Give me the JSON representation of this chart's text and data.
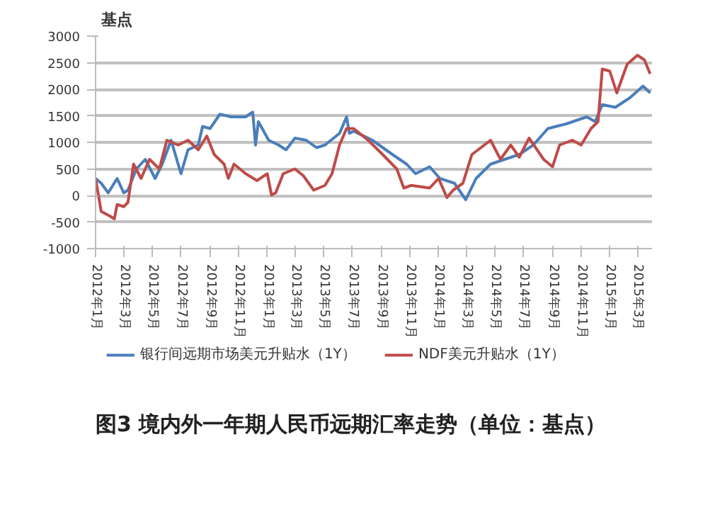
{
  "chart_data": {
    "type": "line",
    "title": "图3 境内外一年期人民币远期汇率走势（单位：基点）",
    "ylabel": "基点",
    "xlim": [
      "2012-01-01",
      "2015-04-01"
    ],
    "ylim": [
      -1000,
      3000
    ],
    "yticks": [
      -1000,
      -500,
      0,
      500,
      1000,
      1500,
      2000,
      2500,
      3000
    ],
    "xticks": [
      {
        "value": "2012-01",
        "label": "2012年1月"
      },
      {
        "value": "2012-03",
        "label": "2012年3月"
      },
      {
        "value": "2012-05",
        "label": "2012年5月"
      },
      {
        "value": "2012-07",
        "label": "2012年7月"
      },
      {
        "value": "2012-09",
        "label": "2012年9月"
      },
      {
        "value": "2012-11",
        "label": "2012年11月"
      },
      {
        "value": "2013-01",
        "label": "2013年1月"
      },
      {
        "value": "2013-03",
        "label": "2013年3月"
      },
      {
        "value": "2013-05",
        "label": "2013年5月"
      },
      {
        "value": "2013-07",
        "label": "2013年7月"
      },
      {
        "value": "2013-09",
        "label": "2013年9月"
      },
      {
        "value": "2013-11",
        "label": "2013年11月"
      },
      {
        "value": "2014-01",
        "label": "2014年1月"
      },
      {
        "value": "2014-03",
        "label": "2014年3月"
      },
      {
        "value": "2014-05",
        "label": "2014年5月"
      },
      {
        "value": "2014-07",
        "label": "2014年7月"
      },
      {
        "value": "2014-09",
        "label": "2014年9月"
      },
      {
        "value": "2014-11",
        "label": "2014年11月"
      },
      {
        "value": "2015-01",
        "label": "2015年1月"
      },
      {
        "value": "2015-03",
        "label": "2015年3月"
      }
    ],
    "grid": "y",
    "legend": "bottom",
    "line_style": "solid",
    "series": [
      {
        "name": "银行间远期市场美元升贴水（1Y）",
        "color": "#4a7ebb",
        "x": [
          "2012-01-01",
          "2012-01-13",
          "2012-01-28",
          "2012-02-16",
          "2012-03-01",
          "2012-03-10",
          "2012-03-28",
          "2012-04-16",
          "2012-05-07",
          "2012-05-22",
          "2012-06-10",
          "2012-07-01",
          "2012-07-16",
          "2012-08-07",
          "2012-08-16",
          "2012-09-01",
          "2012-09-22",
          "2012-10-16",
          "2012-11-16",
          "2012-12-01",
          "2012-12-07",
          "2012-12-13",
          "2013-01-04",
          "2013-01-25",
          "2013-02-10",
          "2013-03-01",
          "2013-03-25",
          "2013-04-16",
          "2013-05-04",
          "2013-06-04",
          "2013-06-19",
          "2013-06-25",
          "2013-07-04",
          "2013-08-13",
          "2013-09-25",
          "2013-10-25",
          "2013-11-13",
          "2013-12-13",
          "2014-01-04",
          "2014-02-04",
          "2014-02-28",
          "2014-03-22",
          "2014-04-22",
          "2014-05-22",
          "2014-06-22",
          "2014-07-22",
          "2014-08-22",
          "2014-10-01",
          "2014-11-13",
          "2014-12-01",
          "2014-12-16",
          "2015-01-13",
          "2015-02-13",
          "2015-03-13",
          "2015-03-28"
        ],
        "values": [
          320,
          230,
          50,
          320,
          50,
          100,
          500,
          680,
          320,
          590,
          1040,
          410,
          860,
          950,
          1300,
          1260,
          1530,
          1480,
          1480,
          1570,
          950,
          1390,
          1040,
          950,
          860,
          1080,
          1040,
          900,
          950,
          1170,
          1480,
          1170,
          1210,
          1040,
          770,
          590,
          410,
          540,
          320,
          230,
          -80,
          320,
          590,
          680,
          770,
          950,
          1260,
          1350,
          1480,
          1390,
          1710,
          1660,
          1840,
          2060,
          1930
        ]
      },
      {
        "name": "NDF美元升贴水（1Y）",
        "color": "#be4b48",
        "x": [
          "2012-01-01",
          "2012-01-13",
          "2012-02-01",
          "2012-02-10",
          "2012-02-16",
          "2012-03-01",
          "2012-03-10",
          "2012-03-22",
          "2012-04-07",
          "2012-04-25",
          "2012-05-16",
          "2012-06-01",
          "2012-06-25",
          "2012-07-16",
          "2012-08-07",
          "2012-08-25",
          "2012-09-10",
          "2012-10-01",
          "2012-10-10",
          "2012-10-22",
          "2012-11-16",
          "2012-12-10",
          "2013-01-01",
          "2013-01-10",
          "2013-01-19",
          "2013-02-04",
          "2013-03-01",
          "2013-03-19",
          "2013-04-10",
          "2013-05-04",
          "2013-05-19",
          "2013-06-04",
          "2013-06-19",
          "2013-07-04",
          "2013-08-04",
          "2013-09-04",
          "2013-10-04",
          "2013-10-19",
          "2013-11-04",
          "2013-12-13",
          "2014-01-01",
          "2014-01-19",
          "2014-02-01",
          "2014-02-22",
          "2014-03-13",
          "2014-04-22",
          "2014-05-13",
          "2014-06-04",
          "2014-06-22",
          "2014-07-13",
          "2014-08-13",
          "2014-09-01",
          "2014-09-16",
          "2014-10-13",
          "2014-11-01",
          "2014-11-22",
          "2014-12-07",
          "2014-12-16",
          "2015-01-01",
          "2015-01-16",
          "2015-02-07",
          "2015-03-01",
          "2015-03-16",
          "2015-03-28"
        ],
        "values": [
          320,
          -300,
          -390,
          -440,
          -170,
          -210,
          -130,
          590,
          320,
          680,
          500,
          1040,
          950,
          1040,
          860,
          1120,
          770,
          590,
          320,
          590,
          410,
          280,
          410,
          10,
          50,
          410,
          500,
          370,
          100,
          190,
          410,
          950,
          1260,
          1260,
          1040,
          770,
          500,
          140,
          190,
          140,
          320,
          -40,
          100,
          230,
          770,
          1040,
          680,
          950,
          720,
          1080,
          680,
          540,
          950,
          1040,
          950,
          1260,
          1390,
          2380,
          2340,
          1930,
          2470,
          2640,
          2550,
          2290
        ]
      }
    ]
  }
}
